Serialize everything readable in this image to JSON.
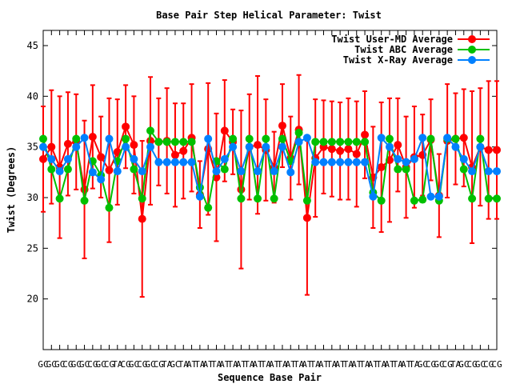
{
  "chart_data": {
    "type": "line",
    "title": "Base Pair Step Helical Parameter: Twist",
    "xlabel": "Sequence Base Pair",
    "ylabel": "Twist (Degrees)",
    "ylim": [
      15,
      46.5
    ],
    "yticks": [
      20,
      25,
      30,
      35,
      40,
      45
    ],
    "xlim": [
      1,
      56
    ],
    "grid": false,
    "legend_position": "top-right",
    "x": [
      1,
      2,
      3,
      4,
      5,
      6,
      7,
      8,
      9,
      10,
      11,
      12,
      13,
      14,
      15,
      16,
      17,
      18,
      19,
      20,
      21,
      22,
      23,
      24,
      25,
      26,
      27,
      28,
      29,
      30,
      31,
      32,
      33,
      34,
      35,
      36,
      37,
      38,
      39,
      40,
      41,
      42,
      43,
      44,
      45,
      46,
      47,
      48,
      49,
      50,
      51,
      52,
      53,
      54,
      55,
      56
    ],
    "categories": [
      "GC",
      "GC",
      "GC",
      "CG",
      "GC",
      "GC",
      "CG",
      "GC",
      "CG",
      "TA",
      "CG",
      "GC",
      "CG",
      "GC",
      "CG",
      "TA",
      "GC",
      "TA",
      "AT",
      "TA",
      "AT",
      "TA",
      "AT",
      "TA",
      "AT",
      "TA",
      "AT",
      "TA",
      "AT",
      "TA",
      "AT",
      "TA",
      "AT",
      "TA",
      "AT",
      "TA",
      "AT",
      "TA",
      "AT",
      "TA",
      "AT",
      "TA",
      "AT",
      "TA",
      "AT",
      "TA",
      "GC",
      "CG",
      "GC",
      "CG",
      "TA",
      "GC",
      "CG",
      "GC",
      "CG",
      "CG"
    ],
    "series": [
      {
        "name": "Twist User-MD Average",
        "color": "#ff0000",
        "values": [
          33.8,
          35.0,
          33.0,
          35.3,
          35.5,
          30.8,
          36.0,
          34.0,
          32.7,
          34.5,
          37.0,
          35.2,
          27.9,
          35.6,
          35.5,
          35.6,
          34.2,
          34.6,
          35.9,
          30.3,
          34.8,
          32.0,
          36.6,
          35.5,
          30.8,
          35.0,
          35.2,
          34.7,
          33.0,
          37.1,
          33.9,
          36.7,
          28.0,
          33.9,
          35.0,
          34.8,
          34.6,
          34.8,
          34.3,
          36.2,
          32.0,
          33.0,
          33.7,
          35.2,
          33.0,
          34.0,
          34.2,
          35.7,
          30.2,
          35.6,
          35.8,
          35.9,
          33.0,
          35.0,
          34.7,
          34.7
        ],
        "err": [
          5.2,
          5.6,
          7.0,
          5.1,
          4.7,
          6.8,
          5.1,
          4.0,
          7.1,
          5.2,
          4.1,
          4.8,
          7.7,
          6.3,
          4.3,
          5.2,
          5.1,
          4.7,
          5.3,
          3.3,
          6.5,
          6.3,
          5.0,
          3.2,
          7.8,
          5.2,
          6.8,
          5.0,
          3.5,
          4.1,
          4.1,
          5.4,
          7.6,
          5.8,
          4.6,
          4.7,
          4.8,
          5.0,
          5.2,
          4.3,
          5.0,
          6.4,
          6.1,
          4.6,
          5.0,
          5.0,
          4.0,
          4.0,
          4.1,
          5.6,
          4.5,
          4.8,
          7.5,
          5.8,
          6.8,
          6.8
        ]
      },
      {
        "name": "Twist ABC Average",
        "color": "#00c000",
        "values": [
          35.8,
          32.8,
          29.9,
          32.8,
          35.8,
          29.7,
          33.6,
          32.2,
          29.0,
          33.6,
          35.8,
          32.8,
          29.9,
          36.6,
          35.5,
          35.5,
          35.5,
          35.5,
          35.5,
          31.0,
          29.0,
          33.6,
          32.8,
          35.8,
          29.9,
          35.8,
          29.9,
          35.8,
          29.9,
          35.8,
          33.6,
          36.4,
          29.7,
          35.5,
          35.5,
          35.5,
          35.5,
          35.5,
          35.5,
          35.5,
          30.5,
          29.7,
          35.8,
          32.8,
          32.8,
          29.7,
          29.8,
          35.8,
          29.7,
          35.8,
          35.8,
          32.8,
          29.9,
          35.8,
          29.9,
          29.9
        ],
        "err": [
          0,
          0,
          0,
          0,
          0,
          0,
          0,
          0,
          0,
          0,
          0,
          0,
          0,
          0,
          0,
          0,
          0,
          0,
          0,
          0,
          0,
          0,
          0,
          0,
          0,
          0,
          0,
          0,
          0,
          0,
          0,
          0,
          0,
          0,
          0,
          0,
          0,
          0,
          0,
          0,
          0,
          0,
          0,
          0,
          0,
          0,
          0,
          0,
          0,
          0,
          0,
          0,
          0,
          0,
          0,
          0
        ]
      },
      {
        "name": "Twist X-Ray Average",
        "color": "#0080ff",
        "values": [
          35.0,
          33.8,
          32.6,
          33.8,
          35.0,
          35.9,
          32.5,
          31.8,
          35.8,
          32.6,
          35.0,
          33.8,
          32.6,
          35.0,
          33.5,
          33.5,
          33.5,
          33.5,
          33.5,
          30.1,
          35.8,
          32.6,
          33.8,
          35.0,
          32.6,
          35.0,
          32.6,
          35.0,
          32.6,
          35.0,
          32.5,
          35.5,
          35.9,
          33.5,
          33.5,
          33.5,
          33.5,
          33.5,
          33.5,
          33.5,
          30.1,
          35.9,
          35.0,
          33.8,
          33.5,
          33.8,
          35.9,
          30.1,
          30.1,
          35.9,
          35.0,
          33.8,
          32.6,
          35.0,
          32.6,
          32.6
        ],
        "err": [
          0,
          0,
          0,
          0,
          0,
          0,
          0,
          0,
          0,
          0,
          0,
          0,
          0,
          0,
          0,
          0,
          0,
          0,
          0,
          0,
          0,
          0,
          0,
          0,
          0,
          0,
          0,
          0,
          0,
          0,
          0,
          0,
          0,
          0,
          0,
          0,
          0,
          0,
          0,
          0,
          0,
          0,
          0,
          0,
          0,
          0,
          0,
          0,
          0,
          0,
          0,
          0,
          0,
          0,
          0,
          0
        ]
      }
    ]
  }
}
